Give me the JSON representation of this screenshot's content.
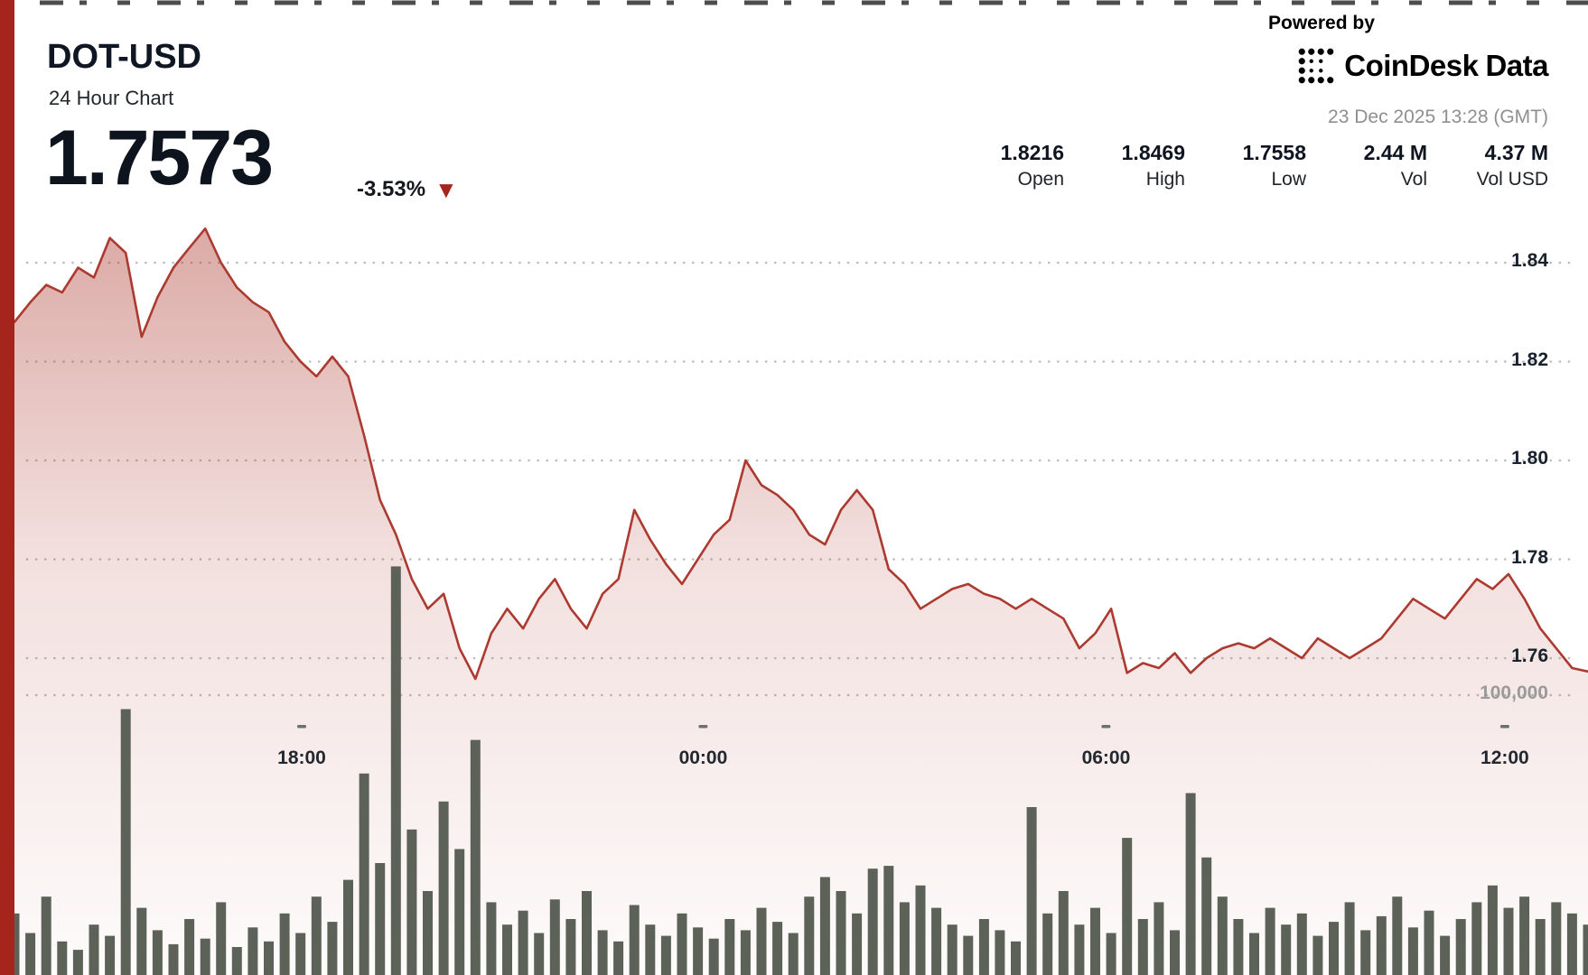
{
  "header": {
    "symbol": "DOT-USD",
    "subtitle": "24 Hour Chart",
    "price": "1.7573",
    "change": "-3.53%",
    "direction_icon": "▼",
    "powered_by": "Powered by",
    "provider_coindesk": "CoinDesk",
    "provider_data": "Data",
    "timestamp": "23 Dec 2025 13:28 (GMT)"
  },
  "stats": [
    {
      "value": "1.8216",
      "label": "Open"
    },
    {
      "value": "1.8469",
      "label": "High"
    },
    {
      "value": "1.7558",
      "label": "Low"
    },
    {
      "value": "2.44 M",
      "label": "Vol"
    },
    {
      "value": "4.37 M",
      "label": "Vol USD"
    }
  ],
  "colors": {
    "accent_red": "#a5251d",
    "line_red": "#ac3a30",
    "volume_bar": "#5c6257",
    "grid": "#bcbcbc",
    "muted_text": "#8f8f8f"
  },
  "chart_data": {
    "type": "area",
    "title": "DOT-USD 24 Hour Chart",
    "xlabel": "",
    "ylabel": "",
    "legend": "none",
    "grid": "dotted-horizontal",
    "ylim": [
      1.75,
      1.85
    ],
    "open": 1.8216,
    "high": 1.8469,
    "low": 1.7558,
    "close": 1.7573,
    "volume": "2.44 M",
    "volume_usd": "4.37 M",
    "y_ticks": [
      1.84,
      1.82,
      1.8,
      1.78,
      1.76
    ],
    "volume_tick_label": "100,000",
    "volume_tick_value": 100000,
    "x_ticks": [
      {
        "label": "18:00",
        "f": 0.19
      },
      {
        "label": "00:00",
        "f": 0.4428
      },
      {
        "label": "06:00",
        "f": 0.6965
      },
      {
        "label": "12:00",
        "f": 0.9476
      }
    ],
    "prices": [
      1.828,
      1.832,
      1.8355,
      1.834,
      1.839,
      1.837,
      1.845,
      1.842,
      1.825,
      1.833,
      1.839,
      1.843,
      1.8469,
      1.84,
      1.835,
      1.832,
      1.83,
      1.824,
      1.82,
      1.817,
      1.821,
      1.817,
      1.805,
      1.792,
      1.785,
      1.776,
      1.77,
      1.773,
      1.762,
      1.7558,
      1.765,
      1.77,
      1.766,
      1.772,
      1.776,
      1.77,
      1.766,
      1.773,
      1.776,
      1.79,
      1.784,
      1.779,
      1.775,
      1.78,
      1.785,
      1.788,
      1.8,
      1.795,
      1.793,
      1.79,
      1.785,
      1.783,
      1.79,
      1.794,
      1.79,
      1.778,
      1.775,
      1.77,
      1.772,
      1.774,
      1.775,
      1.773,
      1.772,
      1.77,
      1.772,
      1.77,
      1.768,
      1.762,
      1.765,
      1.77,
      1.757,
      1.759,
      1.758,
      1.761,
      1.757,
      1.76,
      1.762,
      1.763,
      1.762,
      1.764,
      1.762,
      1.76,
      1.764,
      1.762,
      1.76,
      1.762,
      1.764,
      1.768,
      1.772,
      1.77,
      1.768,
      1.772,
      1.776,
      1.774,
      1.777,
      1.772,
      1.766,
      1.762,
      1.758,
      1.7573
    ],
    "volumes": [
      22000,
      15000,
      28000,
      12000,
      9000,
      18000,
      14000,
      95000,
      24000,
      16000,
      11000,
      20000,
      13000,
      26000,
      10000,
      17000,
      12000,
      22000,
      15000,
      28000,
      19000,
      34000,
      72000,
      40000,
      146000,
      52000,
      30000,
      62000,
      45000,
      84000,
      26000,
      18000,
      23000,
      15000,
      27000,
      20000,
      30000,
      16000,
      12000,
      25000,
      18000,
      14000,
      22000,
      17000,
      13000,
      20000,
      16000,
      24000,
      19000,
      15000,
      28000,
      35000,
      30000,
      22000,
      38000,
      39000,
      26000,
      32000,
      24000,
      18000,
      14000,
      20000,
      16000,
      12000,
      60000,
      22000,
      30000,
      18000,
      24000,
      15000,
      49000,
      20000,
      26000,
      16000,
      65000,
      42000,
      28000,
      20000,
      15000,
      24000,
      18000,
      22000,
      14000,
      19000,
      26000,
      16000,
      21000,
      28000,
      17000,
      23000,
      14000,
      20000,
      26000,
      32000,
      24000,
      28000,
      20000,
      26000,
      22000,
      18000
    ]
  }
}
